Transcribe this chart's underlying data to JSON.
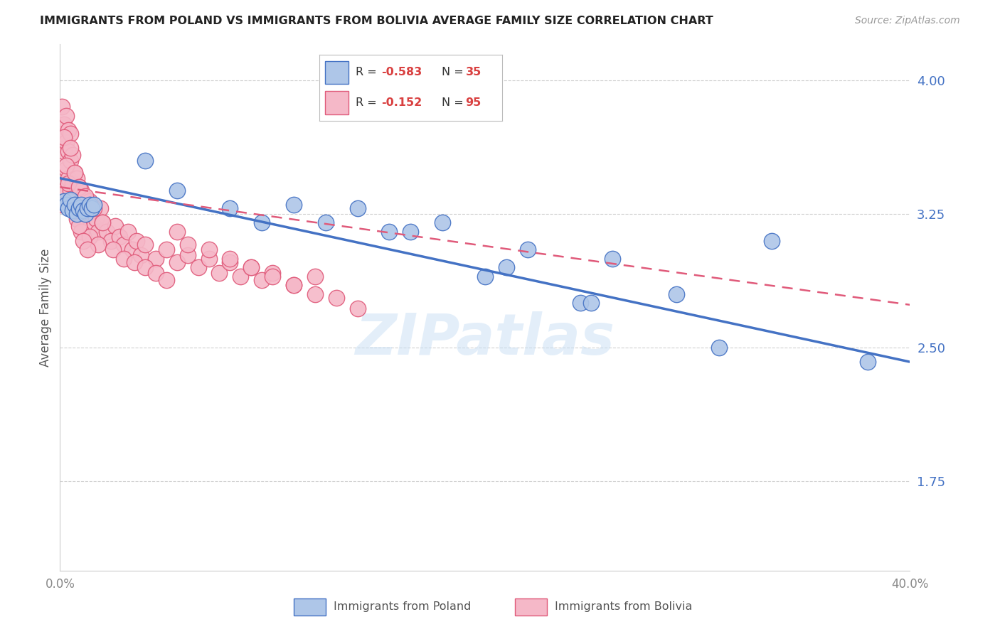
{
  "title": "IMMIGRANTS FROM POLAND VS IMMIGRANTS FROM BOLIVIA AVERAGE FAMILY SIZE CORRELATION CHART",
  "source": "Source: ZipAtlas.com",
  "ylabel": "Average Family Size",
  "yticks": [
    1.75,
    2.5,
    3.25,
    4.0
  ],
  "xlim": [
    0.0,
    0.4
  ],
  "ylim": [
    1.25,
    4.2
  ],
  "poland_color": "#aec6e8",
  "poland_edge_color": "#4472c4",
  "bolivia_color": "#f5b8c8",
  "bolivia_edge_color": "#e05a7a",
  "poland_R": "-0.583",
  "poland_N": "35",
  "bolivia_R": "-0.152",
  "bolivia_N": "95",
  "poland_line_x": [
    0.0,
    0.4
  ],
  "poland_line_y": [
    3.45,
    2.42
  ],
  "bolivia_line_x": [
    0.0,
    0.4
  ],
  "bolivia_line_y": [
    3.4,
    2.74
  ],
  "poland_x": [
    0.002,
    0.003,
    0.004,
    0.005,
    0.006,
    0.007,
    0.008,
    0.009,
    0.01,
    0.011,
    0.012,
    0.013,
    0.014,
    0.015,
    0.016,
    0.04,
    0.055,
    0.08,
    0.095,
    0.11,
    0.125,
    0.14,
    0.165,
    0.18,
    0.2,
    0.22,
    0.245,
    0.155,
    0.21,
    0.25,
    0.31,
    0.335,
    0.38,
    0.26,
    0.29
  ],
  "poland_y": [
    3.32,
    3.3,
    3.28,
    3.33,
    3.27,
    3.3,
    3.25,
    3.28,
    3.3,
    3.27,
    3.25,
    3.28,
    3.3,
    3.28,
    3.3,
    3.55,
    3.38,
    3.28,
    3.2,
    3.3,
    3.2,
    3.28,
    3.15,
    3.2,
    2.9,
    3.05,
    2.75,
    3.15,
    2.95,
    2.75,
    2.5,
    3.1,
    2.42,
    3.0,
    2.8
  ],
  "bolivia_x": [
    0.001,
    0.001,
    0.001,
    0.002,
    0.002,
    0.002,
    0.003,
    0.003,
    0.003,
    0.004,
    0.004,
    0.004,
    0.005,
    0.005,
    0.005,
    0.006,
    0.006,
    0.007,
    0.007,
    0.008,
    0.008,
    0.009,
    0.009,
    0.01,
    0.01,
    0.011,
    0.011,
    0.012,
    0.013,
    0.014,
    0.015,
    0.016,
    0.017,
    0.018,
    0.019,
    0.02,
    0.022,
    0.024,
    0.026,
    0.028,
    0.03,
    0.032,
    0.034,
    0.036,
    0.038,
    0.04,
    0.045,
    0.05,
    0.055,
    0.06,
    0.065,
    0.07,
    0.075,
    0.08,
    0.085,
    0.09,
    0.095,
    0.1,
    0.11,
    0.12,
    0.002,
    0.003,
    0.004,
    0.005,
    0.006,
    0.007,
    0.008,
    0.009,
    0.01,
    0.012,
    0.014,
    0.016,
    0.018,
    0.02,
    0.025,
    0.03,
    0.035,
    0.04,
    0.045,
    0.05,
    0.055,
    0.06,
    0.07,
    0.08,
    0.09,
    0.1,
    0.11,
    0.12,
    0.13,
    0.14,
    0.005,
    0.007,
    0.009,
    0.011,
    0.013
  ],
  "bolivia_y": [
    3.3,
    3.7,
    3.85,
    3.75,
    3.6,
    3.38,
    3.65,
    3.5,
    3.8,
    3.45,
    3.6,
    3.72,
    3.38,
    3.55,
    3.7,
    3.42,
    3.58,
    3.35,
    3.48,
    3.3,
    3.45,
    3.28,
    3.4,
    3.25,
    3.38,
    3.22,
    3.35,
    3.28,
    3.2,
    3.32,
    3.25,
    3.18,
    3.22,
    3.15,
    3.28,
    3.2,
    3.15,
    3.1,
    3.18,
    3.12,
    3.08,
    3.15,
    3.05,
    3.1,
    3.02,
    3.08,
    3.0,
    3.05,
    2.98,
    3.02,
    2.95,
    3.0,
    2.92,
    2.98,
    2.9,
    2.95,
    2.88,
    2.92,
    2.85,
    2.9,
    3.68,
    3.52,
    3.42,
    3.62,
    3.3,
    3.48,
    3.22,
    3.4,
    3.15,
    3.35,
    3.12,
    3.28,
    3.08,
    3.2,
    3.05,
    3.0,
    2.98,
    2.95,
    2.92,
    2.88,
    3.15,
    3.08,
    3.05,
    3.0,
    2.95,
    2.9,
    2.85,
    2.8,
    2.78,
    2.72,
    3.32,
    3.28,
    3.18,
    3.1,
    3.05
  ],
  "watermark": "ZIPatlas",
  "bg_color": "#ffffff",
  "grid_color": "#d0d0d0",
  "tick_color_right": "#4472c4",
  "tick_color_bottom": "#888888"
}
